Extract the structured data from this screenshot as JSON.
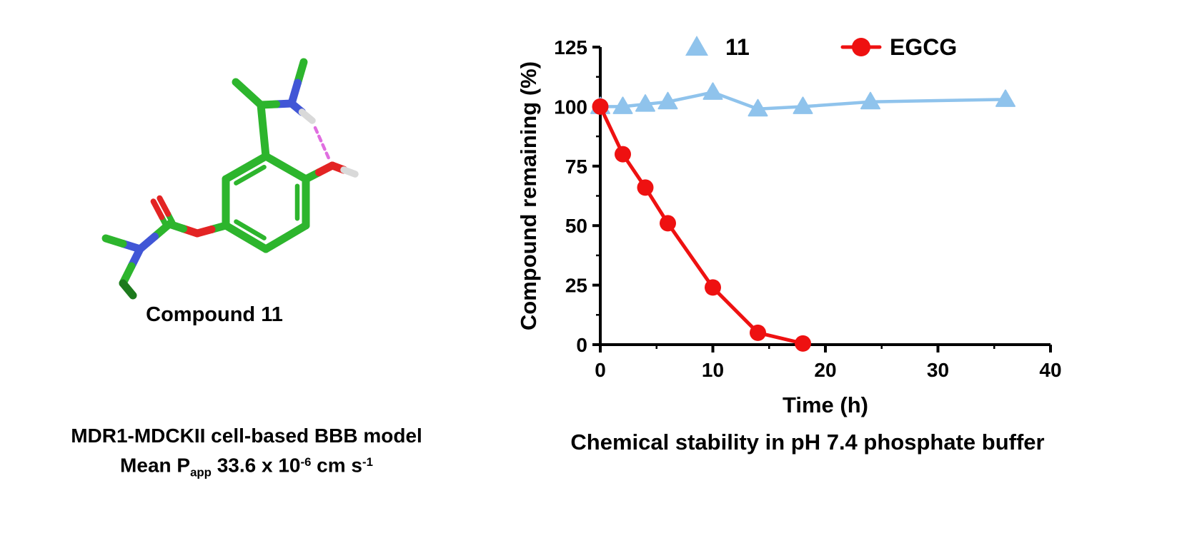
{
  "colors": {
    "mol-green": "#2db52d",
    "mol-dark-green": "#1d7a1d",
    "mol-blue": "#4156d6",
    "mol-red": "#e32424",
    "mol-white": "#d9d9d9",
    "mol-hbond": "#e06ee0",
    "axis": "#000000"
  },
  "left_panel": {
    "compound_label": "Compound 11",
    "caption_line1": "MDR1-MDCKII cell-based BBB model",
    "papp": {
      "prefix": "Mean P",
      "sub": "app",
      "mid": " 33.6 x 10",
      "sup1": "-6",
      "unit": " cm s",
      "sup2": "-1"
    }
  },
  "chart_data": {
    "type": "line",
    "title": "Chemical stability in pH 7.4 phosphate buffer",
    "xlabel": "Time (h)",
    "ylabel": "Compound remaining (%)",
    "xlim": [
      0,
      40
    ],
    "ylim": [
      0,
      125
    ],
    "xticks": [
      0,
      10,
      20,
      30,
      40
    ],
    "yticks": [
      0,
      25,
      50,
      75,
      100,
      125
    ],
    "xminor": [
      5,
      15,
      25,
      35
    ],
    "yminor": [
      12.5,
      37.5,
      62.5,
      87.5,
      112.5
    ],
    "grid": false,
    "legend_position": "top",
    "series": [
      {
        "name": "11",
        "marker": "triangle",
        "color": "#8fc3ec",
        "x": [
          0,
          2,
          4,
          6,
          10,
          14,
          18,
          24,
          36
        ],
        "y": [
          100,
          100,
          101,
          102,
          106,
          99,
          100,
          102,
          103
        ]
      },
      {
        "name": "EGCG",
        "marker": "circle",
        "color": "#ee1111",
        "x": [
          0,
          2,
          4,
          6,
          10,
          14,
          18
        ],
        "y": [
          100,
          80,
          66,
          51,
          24,
          5,
          0.5
        ]
      }
    ]
  }
}
